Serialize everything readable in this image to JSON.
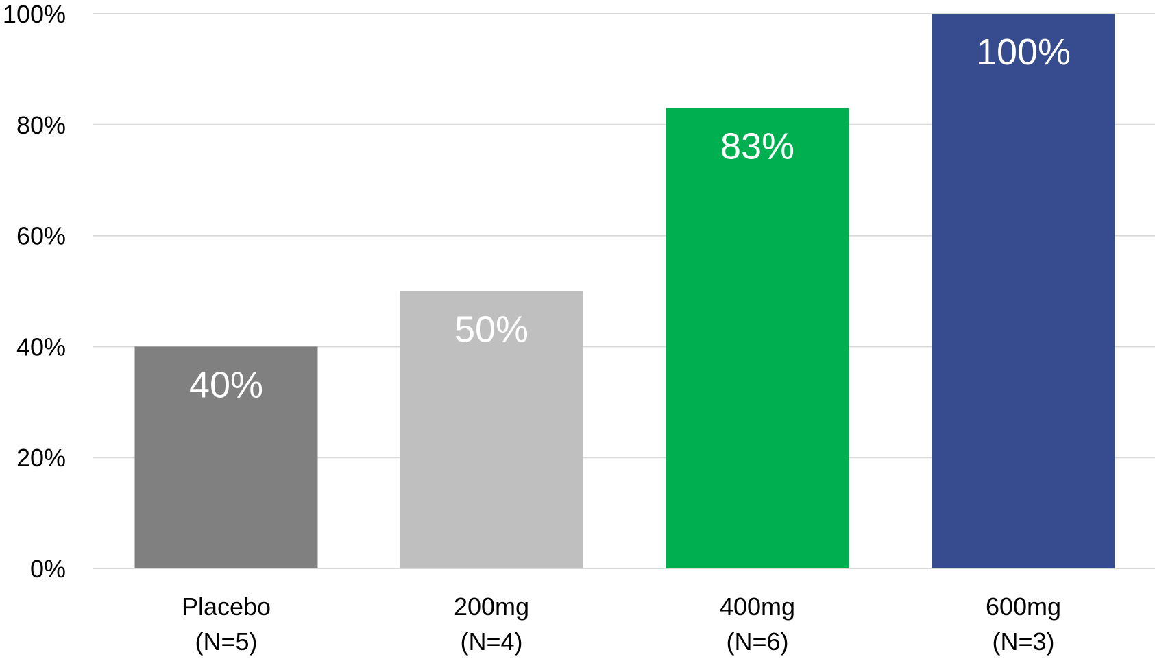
{
  "chart_data": {
    "type": "bar",
    "categories": [
      {
        "line1": "Placebo",
        "line2": "(N=5)"
      },
      {
        "line1": "200mg",
        "line2": "(N=4)"
      },
      {
        "line1": "400mg",
        "line2": "(N=6)"
      },
      {
        "line1": "600mg",
        "line2": "(N=3)"
      }
    ],
    "values": [
      40,
      50,
      83,
      100
    ],
    "data_labels": [
      "40%",
      "50%",
      "83%",
      "100%"
    ],
    "colors": [
      "#808080",
      "#bfbfbf",
      "#00b050",
      "#374c8f"
    ],
    "ylim": [
      0,
      100
    ],
    "yticks": [
      0,
      20,
      40,
      60,
      80,
      100
    ],
    "ytick_labels": [
      "0%",
      "20%",
      "40%",
      "60%",
      "80%",
      "100%"
    ],
    "grid": true,
    "legend": "none"
  }
}
